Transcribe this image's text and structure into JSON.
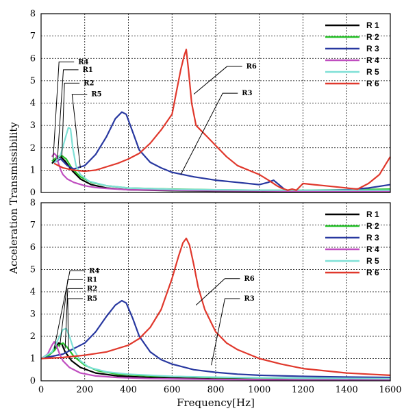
{
  "figure": {
    "xlabel": "Frequency[Hz]",
    "ylabel": "Acceleration Transmissibility"
  },
  "chart_data": [
    {
      "type": "line",
      "panel": "top",
      "xlim": [
        0,
        1600
      ],
      "ylim": [
        0,
        8
      ],
      "xticks": [
        "0",
        "200",
        "400",
        "600",
        "800",
        "1000",
        "1200",
        "1400",
        "1600"
      ],
      "yticks": [
        "0",
        "1",
        "2",
        "3",
        "4",
        "5",
        "6",
        "7",
        "8"
      ],
      "grid": true,
      "legend_position": "top-right",
      "series": [
        {
          "name": "R 1",
          "color": "#000000",
          "x": [
            50,
            70,
            90,
            110,
            140,
            180,
            230,
            300,
            400,
            600,
            800,
            1000,
            1200,
            1400,
            1600
          ],
          "y": [
            1.3,
            1.5,
            1.6,
            1.4,
            1.0,
            0.6,
            0.35,
            0.2,
            0.12,
            0.08,
            0.06,
            0.05,
            0.05,
            0.05,
            0.05
          ]
        },
        {
          "name": "R 2",
          "color": "#27c22a",
          "x": [
            50,
            75,
            95,
            115,
            140,
            180,
            230,
            300,
            400,
            600,
            800,
            1000,
            1200,
            1400,
            1600
          ],
          "y": [
            1.4,
            1.6,
            1.65,
            1.5,
            1.1,
            0.7,
            0.45,
            0.3,
            0.2,
            0.15,
            0.12,
            0.1,
            0.1,
            0.12,
            0.15
          ]
        },
        {
          "name": "R 3",
          "color": "#2838a0",
          "x": [
            60,
            90,
            120,
            150,
            200,
            250,
            300,
            340,
            370,
            390,
            420,
            450,
            500,
            550,
            600,
            700,
            800,
            900,
            1000,
            1040,
            1065,
            1090,
            1120,
            1200,
            1300,
            1400,
            1500,
            1600
          ],
          "y": [
            1.35,
            1.5,
            1.2,
            1.05,
            1.2,
            1.7,
            2.5,
            3.3,
            3.6,
            3.5,
            2.7,
            1.9,
            1.35,
            1.1,
            0.9,
            0.7,
            0.55,
            0.45,
            0.35,
            0.45,
            0.55,
            0.35,
            0.1,
            0.08,
            0.1,
            0.12,
            0.2,
            0.35
          ]
        },
        {
          "name": "R 4",
          "color": "#c04ec0",
          "x": [
            50,
            60,
            70,
            80,
            90,
            100,
            120,
            150,
            200,
            250,
            300,
            400,
            600,
            800,
            1000,
            1200,
            1400,
            1600
          ],
          "y": [
            1.6,
            1.75,
            1.65,
            1.3,
            1.0,
            0.8,
            0.6,
            0.45,
            0.3,
            0.22,
            0.18,
            0.12,
            0.1,
            0.08,
            0.07,
            0.06,
            0.06,
            0.06
          ]
        },
        {
          "name": "R 5",
          "color": "#7ee0d6",
          "x": [
            60,
            90,
            110,
            125,
            135,
            145,
            160,
            180,
            220,
            300,
            400,
            600,
            800,
            1000,
            1200,
            1400,
            1600
          ],
          "y": [
            1.3,
            1.7,
            2.4,
            2.9,
            2.85,
            2.0,
            1.2,
            0.8,
            0.5,
            0.3,
            0.2,
            0.14,
            0.12,
            0.1,
            0.1,
            0.1,
            0.1
          ]
        },
        {
          "name": "R 6",
          "color": "#e0382c",
          "x": [
            60,
            100,
            150,
            200,
            250,
            300,
            350,
            400,
            450,
            500,
            550,
            600,
            620,
            640,
            655,
            665,
            675,
            690,
            710,
            730,
            760,
            800,
            850,
            900,
            950,
            1000,
            1050,
            1080,
            1100,
            1130,
            1150,
            1170,
            1200,
            1250,
            1300,
            1350,
            1400,
            1450,
            1500,
            1550,
            1600
          ],
          "y": [
            1.3,
            1.1,
            1.0,
            0.95,
            1.0,
            1.15,
            1.3,
            1.5,
            1.75,
            2.2,
            2.8,
            3.5,
            4.5,
            5.5,
            6.1,
            6.4,
            5.5,
            4.0,
            3.0,
            2.8,
            2.5,
            2.1,
            1.6,
            1.2,
            1.0,
            0.8,
            0.5,
            0.3,
            0.2,
            0.1,
            0.15,
            0.1,
            0.4,
            0.35,
            0.3,
            0.25,
            0.2,
            0.15,
            0.4,
            0.8,
            1.6
          ]
        }
      ],
      "annotations": [
        {
          "text": "R4",
          "x_data": 170,
          "y_data": 5.75
        },
        {
          "text": "R1",
          "x_data": 190,
          "y_data": 5.4
        },
        {
          "text": "R2",
          "x_data": 195,
          "y_data": 4.8
        },
        {
          "text": "R5",
          "x_data": 230,
          "y_data": 4.3
        },
        {
          "text": "R6",
          "x_data": 940,
          "y_data": 5.55
        },
        {
          "text": "R3",
          "x_data": 920,
          "y_data": 4.35
        }
      ]
    },
    {
      "type": "line",
      "panel": "bottom",
      "xlim": [
        0,
        1600
      ],
      "ylim": [
        0,
        8
      ],
      "xticks": [
        "0",
        "200",
        "400",
        "600",
        "800",
        "1000",
        "1200",
        "1400",
        "1600"
      ],
      "yticks": [
        "0",
        "1",
        "2",
        "3",
        "4",
        "5",
        "6",
        "7",
        "8"
      ],
      "grid": true,
      "legend_position": "top-right",
      "series": [
        {
          "name": "R 1",
          "color": "#000000",
          "x": [
            0,
            30,
            60,
            80,
            95,
            110,
            140,
            180,
            250,
            350,
            500,
            800,
            1200,
            1600
          ],
          "y": [
            1.0,
            1.1,
            1.4,
            1.7,
            1.65,
            1.3,
            0.9,
            0.6,
            0.35,
            0.22,
            0.15,
            0.08,
            0.05,
            0.04
          ]
        },
        {
          "name": "R 2",
          "color": "#27c22a",
          "x": [
            0,
            30,
            60,
            80,
            100,
            120,
            150,
            200,
            260,
            350,
            500,
            800,
            1200,
            1600
          ],
          "y": [
            1.0,
            1.1,
            1.35,
            1.6,
            1.7,
            1.5,
            1.1,
            0.7,
            0.45,
            0.3,
            0.22,
            0.15,
            0.12,
            0.1
          ]
        },
        {
          "name": "R 3",
          "color": "#2838a0",
          "x": [
            0,
            100,
            200,
            250,
            300,
            340,
            370,
            390,
            420,
            450,
            500,
            550,
            600,
            700,
            800,
            900,
            1000,
            1200,
            1400,
            1600
          ],
          "y": [
            1.0,
            1.2,
            1.7,
            2.2,
            2.9,
            3.4,
            3.6,
            3.5,
            2.8,
            2.0,
            1.3,
            0.95,
            0.75,
            0.5,
            0.38,
            0.3,
            0.25,
            0.2,
            0.17,
            0.15
          ]
        },
        {
          "name": "R 4",
          "color": "#c04ec0",
          "x": [
            0,
            30,
            50,
            60,
            70,
            85,
            100,
            130,
            180,
            250,
            350,
            500,
            800,
            1200,
            1600
          ],
          "y": [
            1.0,
            1.2,
            1.6,
            1.75,
            1.6,
            1.2,
            0.9,
            0.6,
            0.35,
            0.22,
            0.15,
            0.1,
            0.06,
            0.04,
            0.03
          ]
        },
        {
          "name": "R 5",
          "color": "#7ee0d6",
          "x": [
            0,
            50,
            80,
            100,
            115,
            130,
            150,
            180,
            220,
            300,
            400,
            600,
            900,
            1200,
            1600
          ],
          "y": [
            1.0,
            1.3,
            1.9,
            2.3,
            2.35,
            2.0,
            1.4,
            0.9,
            0.6,
            0.4,
            0.3,
            0.2,
            0.15,
            0.12,
            0.1
          ]
        },
        {
          "name": "R 6",
          "color": "#e0382c",
          "x": [
            0,
            100,
            200,
            300,
            400,
            450,
            500,
            550,
            600,
            630,
            650,
            665,
            680,
            700,
            720,
            750,
            800,
            850,
            900,
            1000,
            1100,
            1200,
            1300,
            1400,
            1500,
            1600
          ],
          "y": [
            1.0,
            1.05,
            1.15,
            1.3,
            1.6,
            1.9,
            2.4,
            3.2,
            4.6,
            5.6,
            6.2,
            6.4,
            6.1,
            5.2,
            4.2,
            3.2,
            2.2,
            1.7,
            1.4,
            1.0,
            0.75,
            0.55,
            0.45,
            0.35,
            0.3,
            0.25
          ]
        }
      ],
      "annotations": [
        {
          "text": "R4",
          "x_data": 220,
          "y_data": 4.85
        },
        {
          "text": "R1",
          "x_data": 210,
          "y_data": 4.45
        },
        {
          "text": "R2",
          "x_data": 210,
          "y_data": 4.05
        },
        {
          "text": "R5",
          "x_data": 210,
          "y_data": 3.6
        },
        {
          "text": "R6",
          "x_data": 930,
          "y_data": 4.5
        },
        {
          "text": "R3",
          "x_data": 930,
          "y_data": 3.6
        }
      ]
    }
  ]
}
